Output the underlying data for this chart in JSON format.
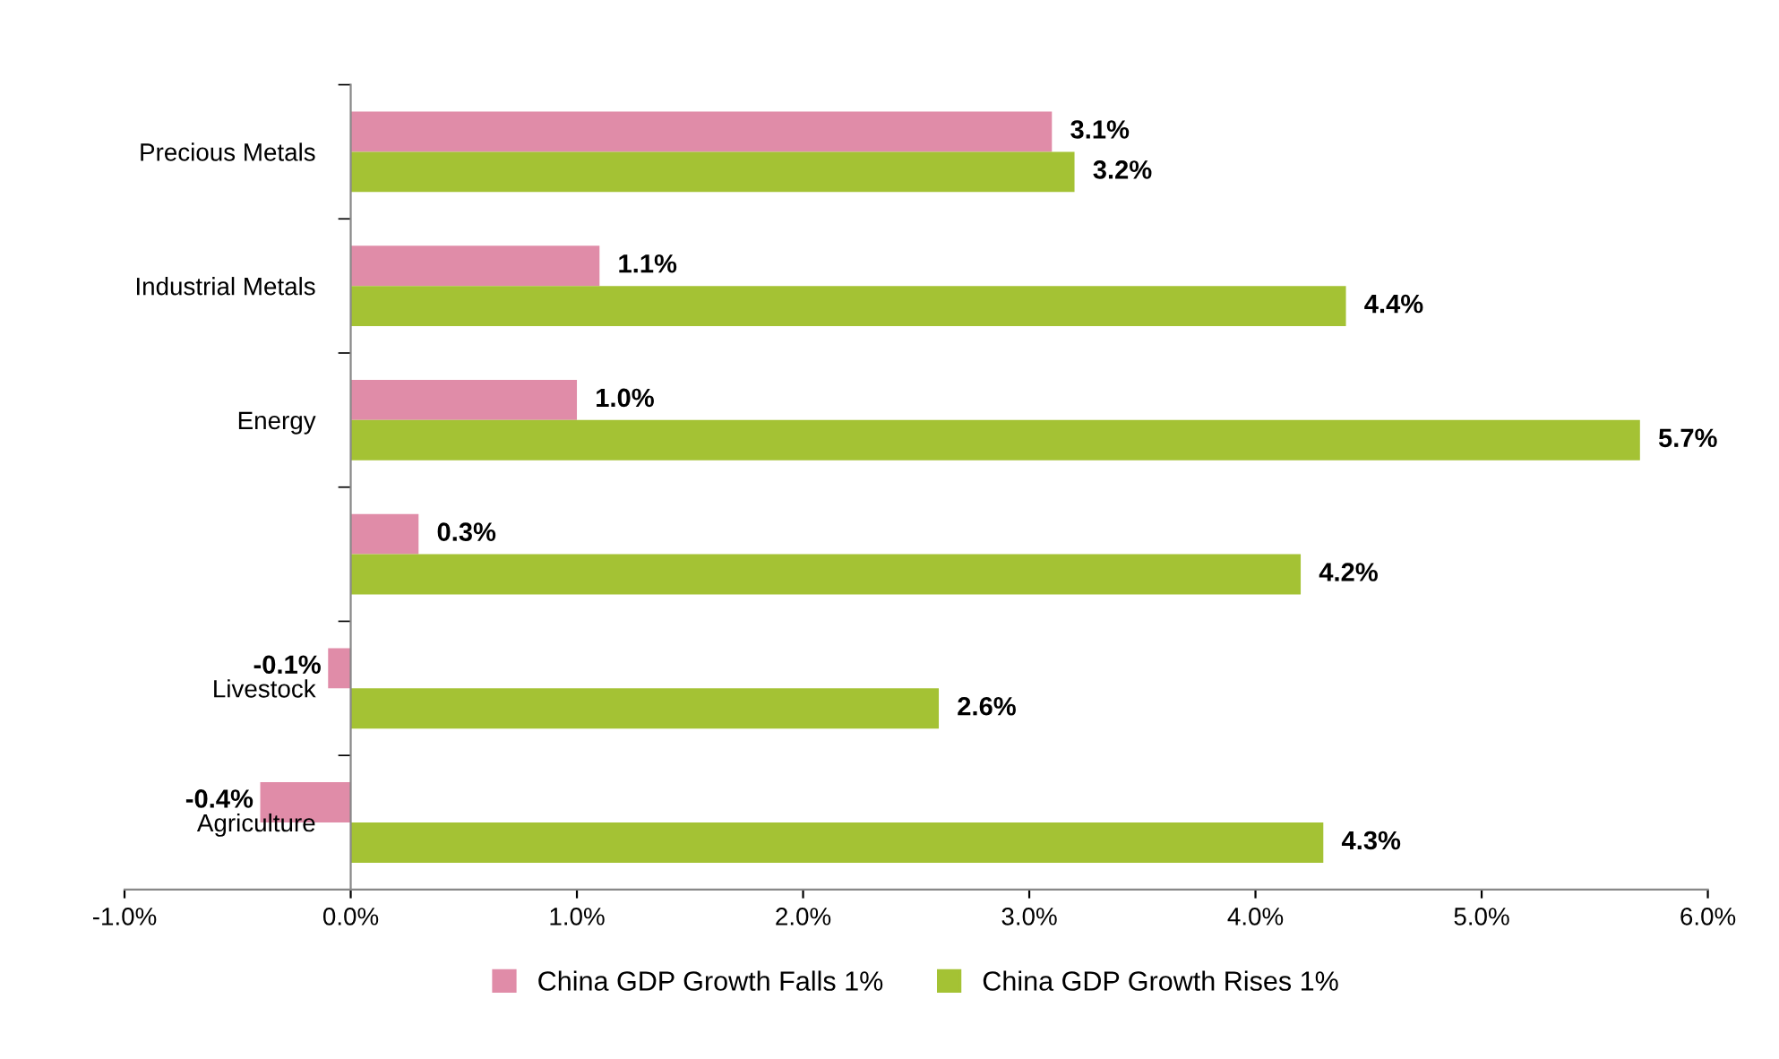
{
  "chart_data": {
    "type": "bar",
    "orientation": "horizontal",
    "categories": [
      "Precious Metals",
      "Industrial Metals",
      "Energy",
      null,
      "Livestock",
      "Agriculture"
    ],
    "series": [
      {
        "name": "China GDP Growth Falls 1%",
        "color": "#e08ca8",
        "values": [
          3.1,
          1.1,
          1.0,
          0.3,
          -0.1,
          -0.4
        ],
        "value_labels": [
          "3.1%",
          "1.1%",
          "1.0%",
          "0.3%",
          "-0.1%",
          "-0.4%"
        ]
      },
      {
        "name": "China GDP Growth Rises 1%",
        "color": "#a4c234",
        "values": [
          3.2,
          4.4,
          5.7,
          4.2,
          2.6,
          4.3
        ],
        "value_labels": [
          "3.2%",
          "4.4%",
          "5.7%",
          "4.2%",
          "2.6%",
          "4.3%"
        ]
      }
    ],
    "xlim": [
      -1.0,
      6.0
    ],
    "xticks": [
      {
        "value": -1.0,
        "label": "-1.0%"
      },
      {
        "value": 0.0,
        "label": "0.0%"
      },
      {
        "value": 1.0,
        "label": "1.0%"
      },
      {
        "value": 2.0,
        "label": "2.0%"
      },
      {
        "value": 3.0,
        "label": "3.0%"
      },
      {
        "value": 4.0,
        "label": "4.0%"
      },
      {
        "value": 5.0,
        "label": "5.0%"
      },
      {
        "value": 6.0,
        "label": "6.0%"
      }
    ],
    "grid": false,
    "legend": "bottom"
  }
}
